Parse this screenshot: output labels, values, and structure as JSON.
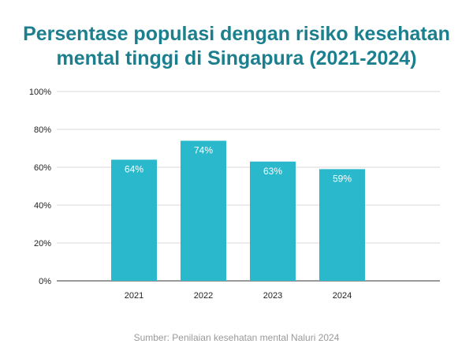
{
  "title": {
    "line1": "Persentase populasi dengan risiko kesehatan",
    "line2": "mental tinggi di Singapura (2021-2024)"
  },
  "source": "Sumber: Penilaian kesehatan mental Naluri 2024",
  "colors": {
    "title": "#1b7f8e",
    "bar": "#29b8cc",
    "bar_label": "#ffffff",
    "grid": "#d9d9d9",
    "axis": "#333333",
    "tick_text": "#222222",
    "source_text": "#9a9a9a"
  },
  "chart_data": {
    "type": "bar",
    "categories": [
      "2021",
      "2022",
      "2023",
      "2024"
    ],
    "values": [
      64,
      74,
      63,
      59
    ],
    "value_labels": [
      "64%",
      "74%",
      "63%",
      "59%"
    ],
    "ylim": [
      0,
      100
    ],
    "yticks": [
      0,
      20,
      40,
      60,
      80,
      100
    ],
    "ytick_labels": [
      "0%",
      "20%",
      "40%",
      "60%",
      "80%",
      "100%"
    ],
    "grid": true,
    "legend": "none"
  }
}
